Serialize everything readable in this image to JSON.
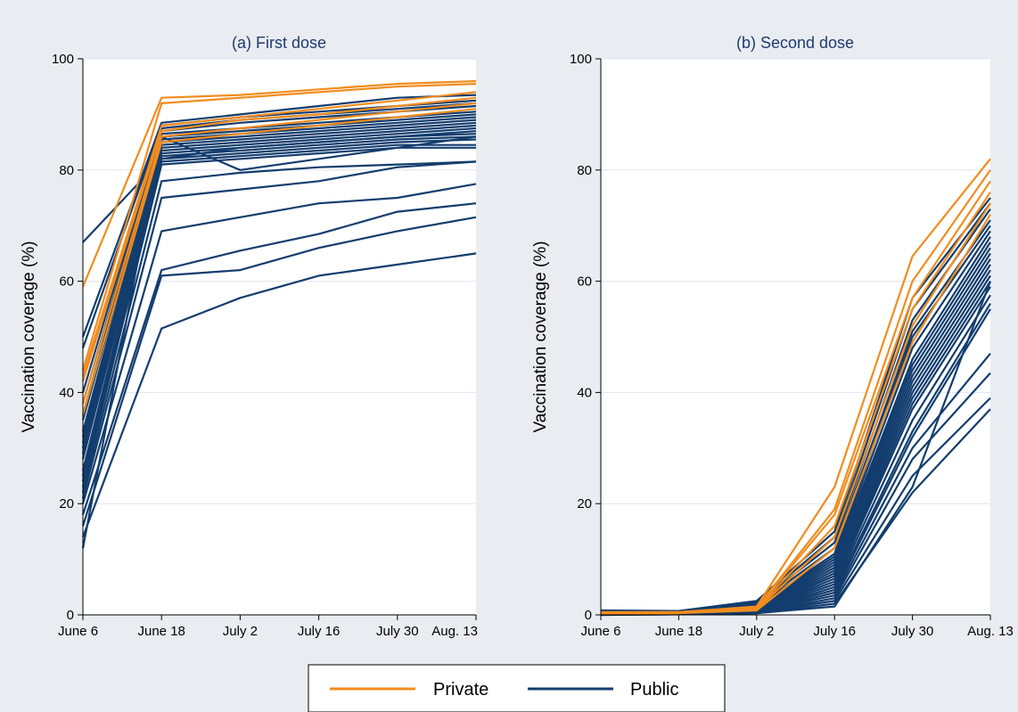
{
  "colors": {
    "private": "#f28c1e",
    "public": "#123d6e",
    "grid": "#dfe6ee",
    "background": "#e9edf2",
    "plot_background": "#ffffff"
  },
  "legend": {
    "items": [
      {
        "label": "Private",
        "color": "#f28c1e"
      },
      {
        "label": "Public",
        "color": "#123d6e"
      }
    ]
  },
  "chart_data": [
    {
      "type": "line",
      "title": "(a) First dose",
      "ylabel": "Vaccination coverage (%)",
      "xlabel": "",
      "x": [
        "June 6",
        "June 18",
        "July 2",
        "July 16",
        "July 30",
        "Aug. 13"
      ],
      "ylim": [
        0,
        100
      ],
      "yticks": [
        0,
        20,
        40,
        60,
        80,
        100
      ],
      "grid": true,
      "series": [
        {
          "group": "Private",
          "values": [
            59,
            93,
            93.5,
            94.5,
            95.5,
            96
          ]
        },
        {
          "group": "Private",
          "values": [
            44,
            92,
            93,
            94,
            95,
            95.5
          ]
        },
        {
          "group": "Private",
          "values": [
            43,
            88,
            89.5,
            91,
            92.5,
            94
          ]
        },
        {
          "group": "Private",
          "values": [
            42,
            87,
            89,
            90,
            91.5,
            93
          ]
        },
        {
          "group": "Private",
          "values": [
            38,
            86,
            87.5,
            89,
            90.5,
            92
          ]
        },
        {
          "group": "Private",
          "values": [
            36,
            85,
            86.5,
            88,
            89.5,
            91
          ]
        },
        {
          "group": "Public",
          "values": [
            67,
            82,
            84,
            85,
            86,
            86.5
          ]
        },
        {
          "group": "Public",
          "values": [
            50,
            88.5,
            90,
            91.5,
            93,
            93.5
          ]
        },
        {
          "group": "Public",
          "values": [
            48,
            88,
            89.5,
            90.5,
            91.5,
            92.5
          ]
        },
        {
          "group": "Public",
          "values": [
            40,
            87.5,
            89,
            90,
            91,
            92
          ]
        },
        {
          "group": "Public",
          "values": [
            38,
            87,
            88.5,
            89.5,
            90.5,
            91.5
          ]
        },
        {
          "group": "Public",
          "values": [
            36,
            86.5,
            87.5,
            88.5,
            89.5,
            90.5
          ]
        },
        {
          "group": "Public",
          "values": [
            35,
            86,
            87,
            88,
            89,
            90
          ]
        },
        {
          "group": "Public",
          "values": [
            33,
            85.5,
            86.5,
            87.5,
            88.5,
            89.5
          ]
        },
        {
          "group": "Public",
          "values": [
            32,
            85,
            86,
            87,
            88,
            89
          ]
        },
        {
          "group": "Public",
          "values": [
            31,
            84.5,
            85.5,
            86.5,
            87.5,
            88.5
          ]
        },
        {
          "group": "Public",
          "values": [
            30,
            84,
            85,
            86,
            87,
            88
          ]
        },
        {
          "group": "Public",
          "values": [
            29,
            83.5,
            84.5,
            85.5,
            86.5,
            87.5
          ]
        },
        {
          "group": "Public",
          "values": [
            28,
            83,
            84,
            85,
            86,
            87
          ]
        },
        {
          "group": "Public",
          "values": [
            26,
            82.5,
            83.5,
            84.5,
            85.5,
            86
          ]
        },
        {
          "group": "Public",
          "values": [
            25,
            82,
            83,
            84,
            85,
            85.5
          ]
        },
        {
          "group": "Public",
          "values": [
            24,
            81.5,
            82.5,
            83.5,
            84.5,
            84.5
          ]
        },
        {
          "group": "Public",
          "values": [
            23,
            81,
            82,
            83,
            84,
            84
          ]
        },
        {
          "group": "Public",
          "values": [
            22,
            78,
            79.5,
            80.5,
            81,
            81.5
          ]
        },
        {
          "group": "Public",
          "values": [
            21,
            75,
            76.5,
            78,
            80.5,
            81.5
          ]
        },
        {
          "group": "Public",
          "values": [
            20,
            69,
            71.5,
            74,
            75,
            77.5
          ]
        },
        {
          "group": "Public",
          "values": [
            18,
            62,
            65.5,
            68.5,
            72.5,
            74
          ]
        },
        {
          "group": "Public",
          "values": [
            16,
            61,
            62,
            66,
            69,
            71.5
          ]
        },
        {
          "group": "Public",
          "values": [
            14,
            51.5,
            57,
            61,
            63,
            65
          ]
        },
        {
          "group": "Public",
          "values": [
            12,
            86,
            80,
            82,
            84,
            86
          ]
        }
      ]
    },
    {
      "type": "line",
      "title": "(b) Second dose",
      "ylabel": "Vaccination coverage (%)",
      "xlabel": "",
      "x": [
        "June 6",
        "June 18",
        "July 2",
        "July 16",
        "July 30",
        "Aug. 13"
      ],
      "ylim": [
        0,
        100
      ],
      "yticks": [
        0,
        20,
        40,
        60,
        80,
        100
      ],
      "grid": true,
      "series": [
        {
          "group": "Private",
          "values": [
            0.5,
            0.5,
            1.5,
            23,
            64.5,
            82
          ]
        },
        {
          "group": "Private",
          "values": [
            0.4,
            0.5,
            1.3,
            19,
            60,
            80
          ]
        },
        {
          "group": "Private",
          "values": [
            0.3,
            0.4,
            1.2,
            18,
            57,
            78
          ]
        },
        {
          "group": "Private",
          "values": [
            0.3,
            0.4,
            1.1,
            16,
            55,
            76
          ]
        },
        {
          "group": "Private",
          "values": [
            0.2,
            0.3,
            1,
            14,
            52,
            74
          ]
        },
        {
          "group": "Private",
          "values": [
            0.2,
            0.3,
            0.8,
            12,
            49,
            72
          ]
        },
        {
          "group": "Public",
          "values": [
            0.8,
            0.7,
            2.5,
            15,
            57,
            75
          ]
        },
        {
          "group": "Public",
          "values": [
            0.7,
            0.6,
            2.2,
            14,
            55,
            74
          ]
        },
        {
          "group": "Public",
          "values": [
            0.6,
            0.6,
            2,
            13,
            53,
            73
          ]
        },
        {
          "group": "Public",
          "values": [
            0.5,
            0.5,
            1.8,
            12,
            51,
            71
          ]
        },
        {
          "group": "Public",
          "values": [
            0.5,
            0.5,
            1.6,
            11,
            50,
            70
          ]
        },
        {
          "group": "Public",
          "values": [
            0.4,
            0.4,
            1.5,
            10.5,
            48,
            69
          ]
        },
        {
          "group": "Public",
          "values": [
            0.4,
            0.4,
            1.4,
            10,
            46,
            68
          ]
        },
        {
          "group": "Public",
          "values": [
            0.3,
            0.4,
            1.3,
            9.5,
            45,
            67
          ]
        },
        {
          "group": "Public",
          "values": [
            0.3,
            0.3,
            1.2,
            9,
            44,
            66
          ]
        },
        {
          "group": "Public",
          "values": [
            0.3,
            0.3,
            1.1,
            8.5,
            43,
            65
          ]
        },
        {
          "group": "Public",
          "values": [
            0.2,
            0.3,
            1,
            8,
            42,
            64
          ]
        },
        {
          "group": "Public",
          "values": [
            0.2,
            0.3,
            0.9,
            7.5,
            41,
            63
          ]
        },
        {
          "group": "Public",
          "values": [
            0.2,
            0.2,
            0.9,
            7,
            40,
            62
          ]
        },
        {
          "group": "Public",
          "values": [
            0.2,
            0.2,
            0.8,
            6.5,
            39,
            61
          ]
        },
        {
          "group": "Public",
          "values": [
            0.1,
            0.2,
            0.8,
            6,
            38,
            60
          ]
        },
        {
          "group": "Public",
          "values": [
            0.1,
            0.2,
            0.7,
            5.5,
            37,
            59
          ]
        },
        {
          "group": "Public",
          "values": [
            0.1,
            0.2,
            0.6,
            5,
            35,
            57.5
          ]
        },
        {
          "group": "Public",
          "values": [
            0.1,
            0.1,
            0.6,
            4.5,
            33,
            56
          ]
        },
        {
          "group": "Public",
          "values": [
            0.1,
            0.1,
            0.5,
            4,
            32,
            55
          ]
        },
        {
          "group": "Public",
          "values": [
            0.1,
            0.1,
            0.5,
            3.5,
            30,
            47
          ]
        },
        {
          "group": "Public",
          "values": [
            0.1,
            0.1,
            0.4,
            3,
            28,
            43.5
          ]
        },
        {
          "group": "Public",
          "values": [
            0.1,
            0.1,
            0.4,
            2.5,
            25,
            39
          ]
        },
        {
          "group": "Public",
          "values": [
            0,
            0.1,
            0.3,
            2,
            22,
            37
          ]
        },
        {
          "group": "Public",
          "values": [
            0,
            0.1,
            0.3,
            1.5,
            23,
            60
          ]
        }
      ]
    }
  ]
}
